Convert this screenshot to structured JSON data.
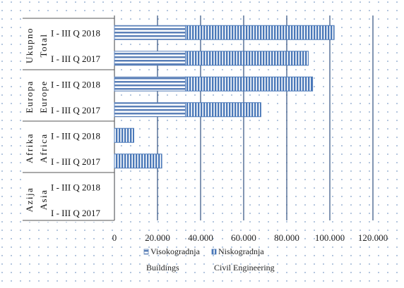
{
  "chart_data": {
    "type": "bar",
    "orientation": "horizontal",
    "stacked": true,
    "groups": [
      {
        "name": "Ukupno",
        "name_en": "Total",
        "categories": [
          "I - III Q 2018",
          "I - III Q 2017"
        ]
      },
      {
        "name": "Europa",
        "name_en": "Europe",
        "categories": [
          "I - III Q 2018",
          "I - III Q 2017"
        ]
      },
      {
        "name": "Afrika",
        "name_en": "Africa",
        "categories": [
          "I - III Q 2018",
          "I - III Q 2017"
        ]
      },
      {
        "name": "Azija",
        "name_en": "Asia",
        "categories": [
          "I - III Q 2018",
          "I - III Q 2017"
        ]
      }
    ],
    "series": [
      {
        "name": "Visokogradnja",
        "name_en": "Buildings",
        "color": "#5b80b8",
        "pattern": "horizontal-stripes",
        "values": [
          33000,
          33000,
          33000,
          33000,
          0,
          0,
          0,
          0
        ]
      },
      {
        "name": "Niskogradnja",
        "name_en": "Civil Engineering",
        "color": "#4a78b8",
        "pattern": "vertical-stripes",
        "values": [
          69000,
          57000,
          59000,
          35000,
          9000,
          22000,
          0,
          0
        ]
      }
    ],
    "xlim": [
      0,
      120000
    ],
    "xticks": [
      "0",
      "20.000",
      "40.000",
      "60.000",
      "80.000",
      "100.000",
      "120.000"
    ],
    "grid": true,
    "legend_position": "bottom",
    "background": "dotted"
  }
}
